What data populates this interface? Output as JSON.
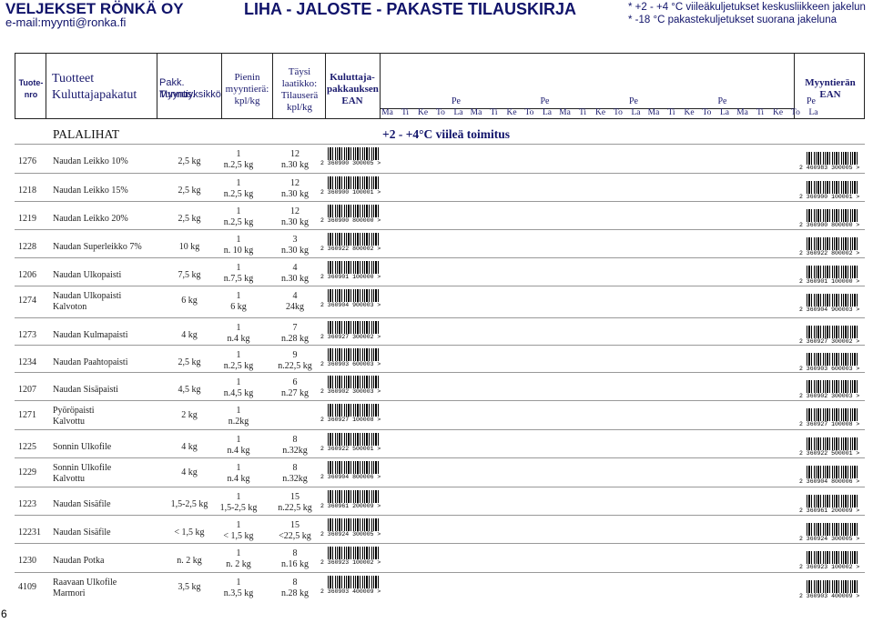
{
  "company": "VELJEKSET RÖNKÄ OY",
  "email": "e-mail:myynti@ronka.fi",
  "title": "LIHA - JALOSTE - PAKASTE TILAUSKIRJA",
  "notes": [
    "* +2 - +4 °C viileäkuljetukset keskusliikkeen jakelun",
    "* -18 °C pakastekuljetukset suorana jakeluna"
  ],
  "header": {
    "tuotenro": "Tuote- nro",
    "tuotteet": "Tuotteet",
    "kuluttajapakkaukset": "Kuluttajapakatut",
    "pakk": "Pakk. Tunnus.",
    "myyntiyksikko": "Myyntiyksikkö",
    "pienin": "Pienin myyntierä: kpl/kg",
    "taysi": "Täysi laatikko: Tilauserä kpl/kg",
    "kuluttaja_ean": "Kuluttaja- pakkauksen EAN",
    "pe": "Pe",
    "days": [
      "Ma",
      "Ti",
      "Ke",
      "To",
      "La"
    ],
    "myyntieran": "Myyntierän EAN"
  },
  "section": "PALALIHAT",
  "cold_chain": "+2 - +4°C viileä toimitus",
  "products": [
    {
      "nro": "1276",
      "name": [
        "Naudan Leikko 10%"
      ],
      "pakk": "2,5 kg",
      "min": [
        "1",
        "n.2,5 kg"
      ],
      "full": [
        "12",
        "n.30 kg"
      ],
      "ean1": "2 360900 300005 >",
      "ean2": "2 460983 300005 >"
    },
    {
      "nro": "1218",
      "name": [
        "Naudan Leikko 15%"
      ],
      "pakk": "2,5 kg",
      "min": [
        "1",
        "n.2,5 kg"
      ],
      "full": [
        "12",
        "n.30 kg"
      ],
      "ean1": "2 360900 100001 >",
      "ean2": "2 360900 100001 >"
    },
    {
      "nro": "1219",
      "name": [
        "Naudan Leikko 20%"
      ],
      "pakk": "2,5 kg",
      "min": [
        "1",
        "n.2,5 kg"
      ],
      "full": [
        "12",
        "n.30 kg"
      ],
      "ean1": "2 360900 800000 >",
      "ean2": "2 360900 800000 >"
    },
    {
      "nro": "1228",
      "name": [
        "Naudan Superleikko 7%"
      ],
      "pakk": "10 kg",
      "min": [
        "1",
        "n. 10 kg"
      ],
      "full": [
        "3",
        "n.30 kg"
      ],
      "ean1": "2 360922 800002 >",
      "ean2": "2 360922 800002 >"
    },
    {
      "nro": "1206",
      "name": [
        "Naudan Ulkopaisti"
      ],
      "pakk": "7,5 kg",
      "min": [
        "1",
        "n.7,5 kg"
      ],
      "full": [
        "4",
        "n.30 kg"
      ],
      "ean1": "2 360901 100000 >",
      "ean2": "2 360901 100000 >"
    },
    {
      "nro": "1274",
      "name": [
        "Naudan Ulkopaisti",
        "Kalvoton"
      ],
      "pakk": "6 kg",
      "min": [
        "1",
        "6 kg"
      ],
      "full": [
        "4",
        "24kg"
      ],
      "ean1": "2 360904 900003 >",
      "ean2": "2 360904 900003 >"
    },
    {
      "nro": "1273",
      "name": [
        "Naudan Kulmapaisti"
      ],
      "pakk": "4 kg",
      "min": [
        "1",
        "n.4 kg"
      ],
      "full": [
        "7",
        "n.28 kg"
      ],
      "ean1": "2 360927 300002 >",
      "ean2": "2 360927 300002 >"
    },
    {
      "nro": "1234",
      "name": [
        "Naudan Paahtopaisti"
      ],
      "pakk": "2,5 kg",
      "min": [
        "1",
        "n.2,5 kg"
      ],
      "full": [
        "9",
        "n.22,5 kg"
      ],
      "ean1": "2 360903 600003 >",
      "ean2": "2 360903 600003 >"
    },
    {
      "nro": "1207",
      "name": [
        "Naudan Sisäpaisti"
      ],
      "pakk": "4,5 kg",
      "min": [
        "1",
        "n.4,5 kg"
      ],
      "full": [
        "6",
        "n.27 kg"
      ],
      "ean1": "2 360902 300003 >",
      "ean2": "2 360902 300003 >"
    },
    {
      "nro": "1271",
      "name": [
        "Pyöröpaisti",
        "Kalvottu"
      ],
      "pakk": "2 kg",
      "min": [
        "1",
        "n.2kg"
      ],
      "full": [
        "",
        ""
      ],
      "ean1": "2 360927 100008 >",
      "ean2": "2 360927 100008 >"
    },
    {
      "nro": "1225",
      "name": [
        "Sonnin Ulkofile"
      ],
      "pakk": "4 kg",
      "min": [
        "1",
        "n.4 kg"
      ],
      "full": [
        "8",
        "n.32kg"
      ],
      "ean1": "2 360922 500001 >",
      "ean2": "2 360922 500001 >"
    },
    {
      "nro": "1229",
      "name": [
        "Sonnin Ulkofile",
        "Kalvottu"
      ],
      "pakk": "4 kg",
      "min": [
        "1",
        "n.4 kg"
      ],
      "full": [
        "8",
        "n.32kg"
      ],
      "ean1": "2 360904 800006 >",
      "ean2": "2 360904 800006 >"
    },
    {
      "nro": "1223",
      "name": [
        "Naudan Sisäfile"
      ],
      "pakk": "1,5-2,5 kg",
      "min": [
        "1",
        "1,5-2,5 kg"
      ],
      "full": [
        "15",
        "n.22,5 kg"
      ],
      "ean1": "2 360961 200009 >",
      "ean2": "2 360961 200009 >"
    },
    {
      "nro": "12231",
      "name": [
        "Naudan Sisäfile"
      ],
      "pakk": "< 1,5 kg",
      "min": [
        "1",
        "< 1,5 kg"
      ],
      "full": [
        "15",
        "<22,5 kg"
      ],
      "ean1": "2 360924 300005 >",
      "ean2": "2 360924 300005 >"
    },
    {
      "nro": "1230",
      "name": [
        "Naudan Potka"
      ],
      "pakk": "n. 2 kg",
      "min": [
        "1",
        "n. 2 kg"
      ],
      "full": [
        "8",
        "n.16 kg"
      ],
      "ean1": "2 360923 100002 >",
      "ean2": "2 360923 100002 >"
    },
    {
      "nro": "4109",
      "name": [
        "Raavaan Ulkofile",
        "Marmori"
      ],
      "pakk": "3,5 kg",
      "min": [
        "1",
        "n.3,5 kg"
      ],
      "full": [
        "8",
        "n.28 kg"
      ],
      "ean1": "2 360903 400009 >",
      "ean2": "2 360903 400009 >"
    }
  ],
  "page_number": "6"
}
